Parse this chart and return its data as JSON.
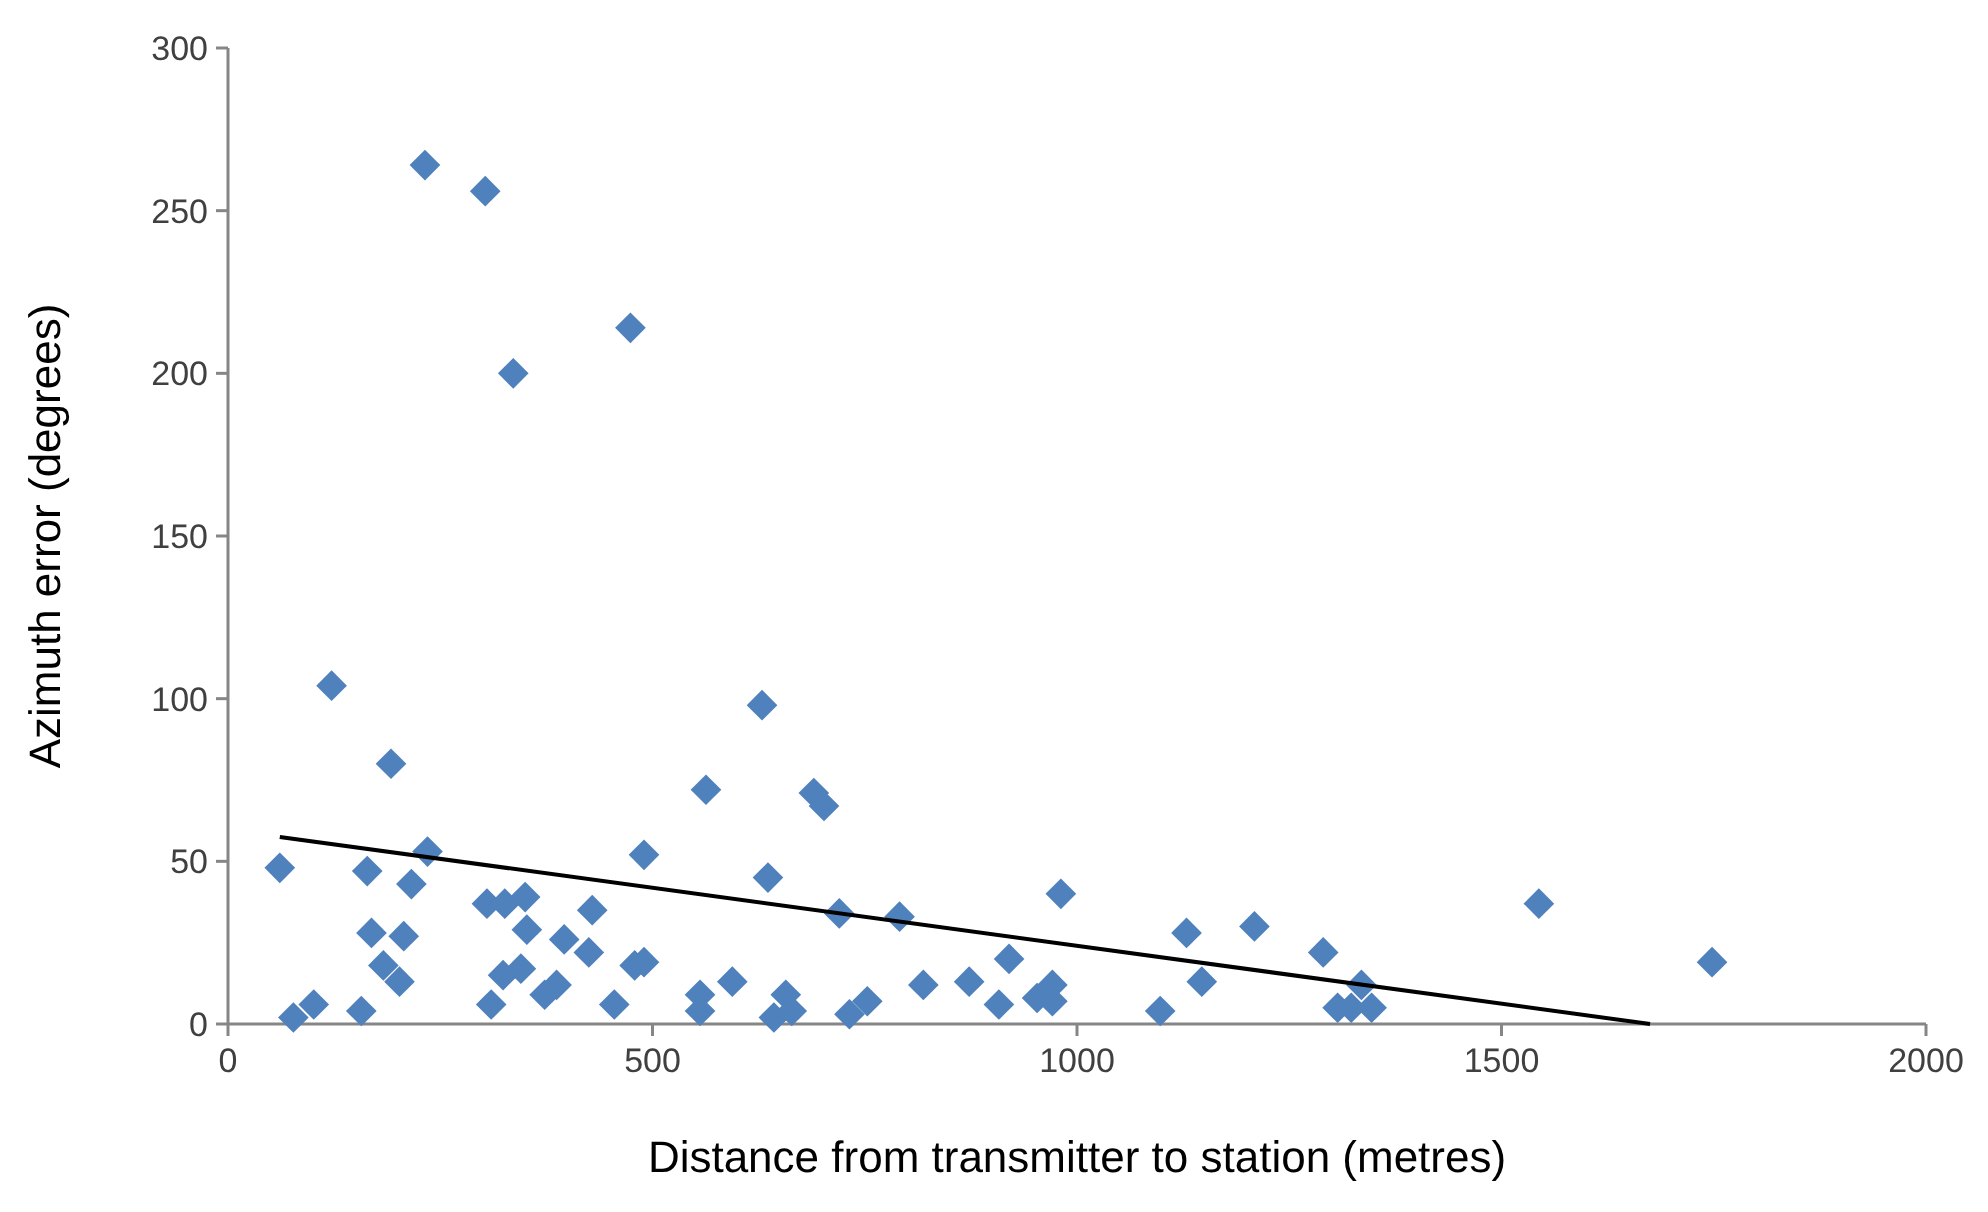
{
  "chart_data": {
    "type": "scatter",
    "xlabel": "Distance from transmitter to station (metres)",
    "ylabel": "Azimuth error (degrees)",
    "xlim": [
      0,
      2000
    ],
    "xticks": [
      0,
      500,
      1000,
      1500,
      2000
    ],
    "ylim": [
      0,
      300
    ],
    "yticks": [
      0,
      50,
      100,
      150,
      200,
      250,
      300
    ],
    "grid": false,
    "marker": "diamond",
    "series": [
      {
        "color": "#4f81bd",
        "x": [
          61,
          77,
          101,
          122,
          157,
          164,
          169,
          192,
          183,
          202,
          207,
          216,
          235,
          310,
          305,
          326,
          350,
          324,
          345,
          352,
          373,
          387,
          396,
          429,
          425,
          455,
          479,
          490,
          490,
          563,
          556,
          556,
          594,
          629,
          636,
          643,
          657,
          664,
          690,
          702,
          720,
          732,
          753,
          791,
          819,
          873,
          908,
          920,
          953,
          971,
          971,
          981,
          1098,
          1129,
          1147,
          1209,
          1290,
          1307,
          1335,
          1323,
          1347,
          1544,
          1748,
          232,
          303,
          336,
          474
        ],
        "values": [
          48,
          2,
          6,
          104,
          4,
          47,
          28,
          80,
          18,
          13,
          27,
          43,
          53,
          6,
          37,
          37,
          39,
          15,
          17,
          29,
          9,
          12,
          26,
          35,
          22,
          6,
          18,
          19,
          52,
          72,
          9,
          4,
          13,
          98,
          45,
          2,
          9,
          4,
          71,
          67,
          34,
          3,
          7,
          33,
          12,
          13,
          6,
          20,
          8,
          12,
          7,
          40,
          4,
          28,
          13,
          30,
          22,
          5,
          12,
          5,
          5,
          37,
          19,
          264,
          256,
          200,
          214
        ]
      },
      {
        "type": "line",
        "color": "#000000",
        "marker": "none",
        "line_style": "solid",
        "x": [
          61,
          1675
        ],
        "values": [
          57.5,
          0
        ]
      }
    ]
  }
}
